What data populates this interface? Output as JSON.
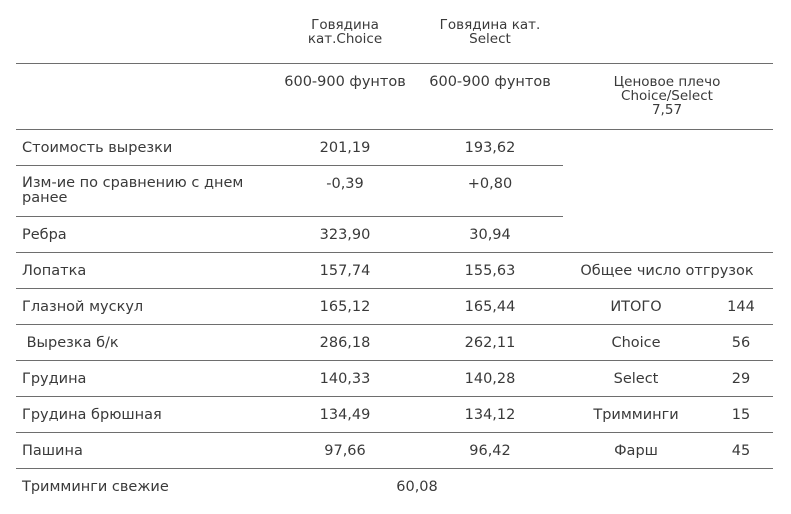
{
  "header": {
    "col_choice": [
      "Говядина",
      "кат.Choice"
    ],
    "col_select": [
      "Говядина кат.",
      "Select"
    ],
    "weight_choice": "600-900 фунтов",
    "weight_select": "600-900 фунтов",
    "spread": [
      "Ценовое плечо",
      "Choice/Select",
      "7,57"
    ]
  },
  "rows": [
    {
      "label": "Стоимость вырезки",
      "choice": "201,19",
      "select": "193,62"
    },
    {
      "label": [
        "Изм-ие по сравнению с днем",
        "ранее"
      ],
      "choice": "-0,39",
      "select": "+0,80"
    },
    {
      "label": "Ребра",
      "choice": "323,90",
      "select": "30,94"
    },
    {
      "label": "Лопатка",
      "choice": "157,74",
      "select": "155,63"
    },
    {
      "label": "Глазной мускул",
      "choice": "165,12",
      "select": "165,44"
    },
    {
      "label": " Вырезка б/к",
      "choice": "286,18",
      "select": "262,11"
    },
    {
      "label": "Грудина",
      "choice": "140,33",
      "select": "140,28"
    },
    {
      "label": "Грудина брюшная",
      "choice": "134,49",
      "select": "134,12"
    },
    {
      "label": "Пашина",
      "choice": "97,66",
      "select": "96,42"
    },
    {
      "label": "Тримминги свежие",
      "value": "60,08"
    }
  ],
  "shipments": {
    "title": "Общее число отгрузок",
    "items": [
      {
        "label": "ИТОГО",
        "value": "144"
      },
      {
        "label": "Choice",
        "value": "56"
      },
      {
        "label": "Select",
        "value": "29"
      },
      {
        "label": "Тримминги",
        "value": "15"
      },
      {
        "label": "Фарш",
        "value": "45"
      }
    ]
  }
}
